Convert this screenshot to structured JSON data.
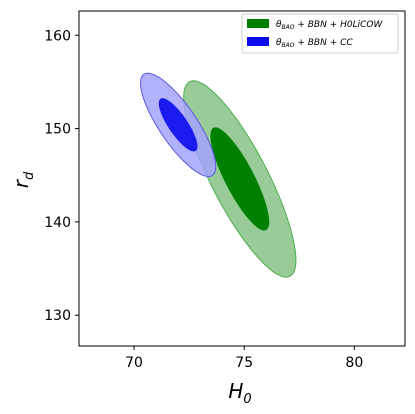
{
  "chart_data": {
    "type": "contour",
    "xlabel": "H_0",
    "ylabel": "r_d",
    "xlim": [
      67.5,
      82.3
    ],
    "ylim": [
      126.7,
      162.6
    ],
    "xticks": [
      70,
      75,
      80
    ],
    "yticks": [
      130,
      140,
      150,
      160
    ],
    "legend_position": "top-right",
    "series": [
      {
        "name": "θ_BAO + BBN + H0LiCOW",
        "legend_main": "θ",
        "legend_sub": "BAO",
        "legend_rest": " + BBN + H0LiCOW",
        "color_inner": "#008000",
        "color_outer": "#98cb98",
        "edge": "#4caf4c",
        "center": [
          74.8,
          144.6
        ],
        "contours": [
          {
            "level": "1σ",
            "semi_major": 6.2,
            "semi_minor": 1.6,
            "angle_deg": -62
          },
          {
            "level": "2σ",
            "semi_major": 11.8,
            "semi_minor": 3.1,
            "angle_deg": -62
          }
        ]
      },
      {
        "name": "θ_BAO + BBN + CC",
        "legend_main": "θ",
        "legend_sub": "BAO",
        "legend_rest": " + BBN + CC",
        "color_inner": "#0b0bee",
        "color_outer": "#a3a3fb",
        "edge": "#5a5ae0",
        "center": [
          72.0,
          150.4
        ],
        "contours": [
          {
            "level": "1σ",
            "semi_major": 3.4,
            "semi_minor": 1.05,
            "angle_deg": -55
          },
          {
            "level": "2σ",
            "semi_major": 6.6,
            "semi_minor": 2.05,
            "angle_deg": -55
          }
        ]
      }
    ]
  }
}
